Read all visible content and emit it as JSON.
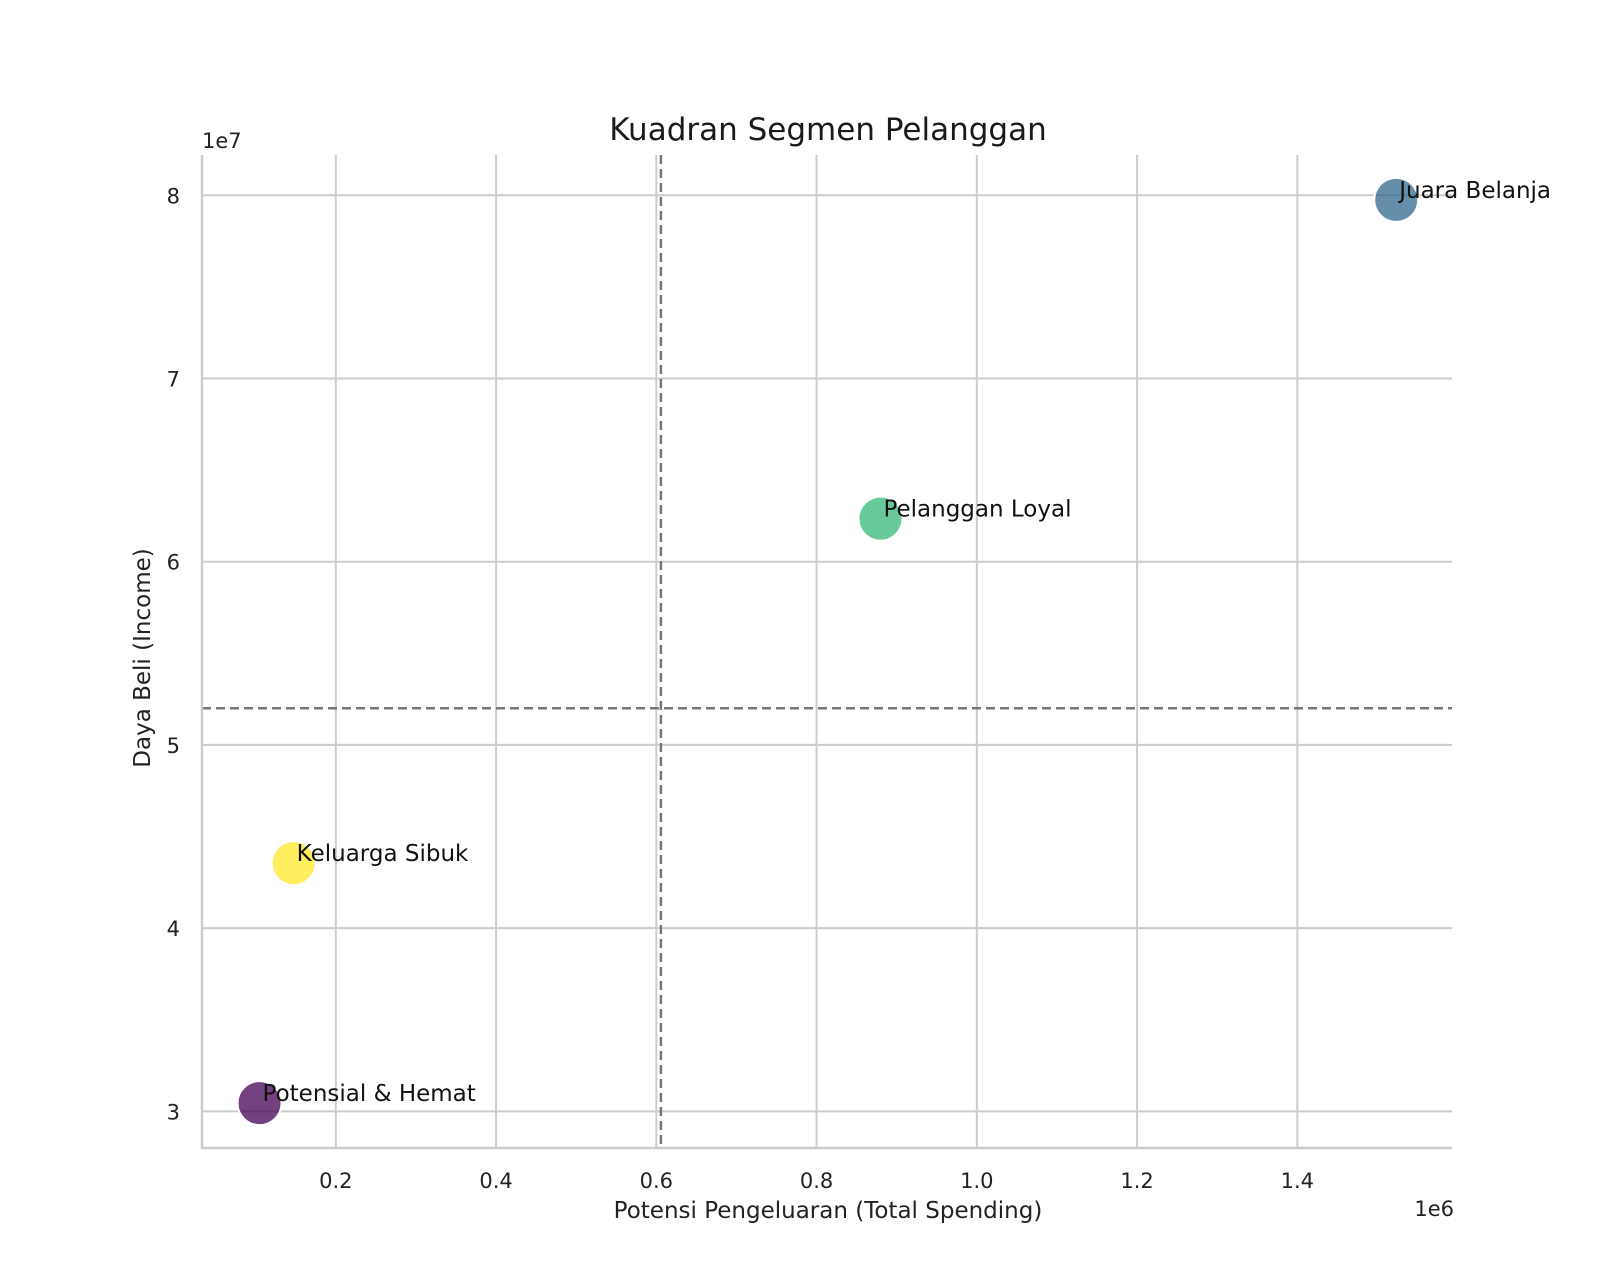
{
  "chart_data": {
    "type": "scatter",
    "title": "Kuadran Segmen Pelanggan",
    "xlabel": "Potensi Pengeluaran (Total Spending)",
    "ylabel": "Daya Beli (Income)",
    "x_offset_label": "1e6",
    "y_offset_label": "1e7",
    "x_unit_multiplier": 1000000,
    "y_unit_multiplier": 10000000,
    "xlim": [
      0.033,
      1.593
    ],
    "ylim": [
      2.8,
      8.22
    ],
    "x_ticks": [
      0.2,
      0.4,
      0.6,
      0.8,
      1.0,
      1.2,
      1.4
    ],
    "x_tick_labels": [
      "0.2",
      "0.4",
      "0.6",
      "0.8",
      "1.0",
      "1.2",
      "1.4"
    ],
    "y_ticks": [
      3,
      4,
      5,
      6,
      7,
      8
    ],
    "y_tick_labels": [
      "3",
      "4",
      "5",
      "6",
      "7",
      "8"
    ],
    "grid": true,
    "reference_lines": {
      "vertical_x": 0.6057,
      "horizontal_y": 5.2
    },
    "points": [
      {
        "label": "Potensial & Hemat",
        "x": 0.1048,
        "y": 3.045,
        "color": "#440154"
      },
      {
        "label": "Keluarga Sibuk",
        "x": 0.1474,
        "y": 4.355,
        "color": "#fde725"
      },
      {
        "label": "Pelanggan Loyal",
        "x": 0.8797,
        "y": 6.235,
        "color": "#35b779"
      },
      {
        "label": "Juara Belanja",
        "x": 1.5234,
        "y": 7.975,
        "color": "#31688e"
      }
    ]
  }
}
